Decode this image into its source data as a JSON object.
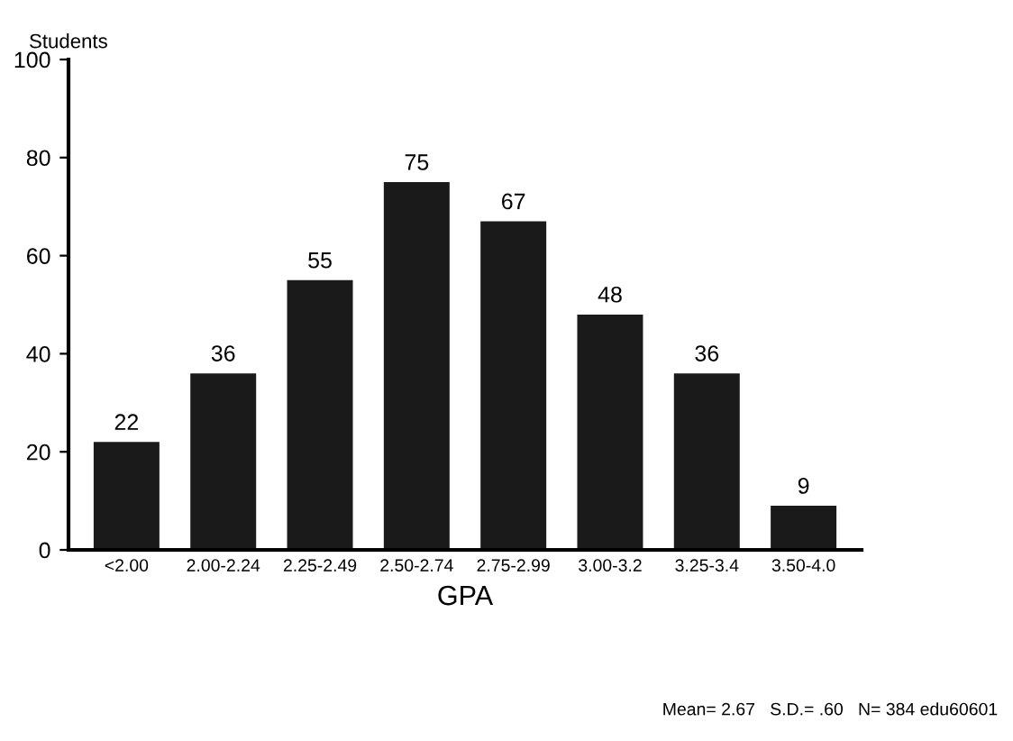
{
  "chart_data": {
    "type": "bar",
    "ylabel": "Students",
    "xlabel": "GPA",
    "categories": [
      "<2.00",
      "2.00-2.24",
      "2.25-2.49",
      "2.50-2.74",
      "2.75-2.99",
      "3.00-3.2",
      "3.25-3.4",
      "3.50-4.0"
    ],
    "values": [
      22,
      36,
      55,
      75,
      67,
      48,
      36,
      9
    ],
    "color": "#1a1a1a",
    "ylim": [
      0,
      100
    ],
    "yticks": [
      0,
      20,
      40,
      60,
      80,
      100
    ],
    "data_labels": true,
    "grid": false,
    "annotations": [
      "Mean= 2.67   S.D.= .60   N= 384 edu60601"
    ]
  }
}
